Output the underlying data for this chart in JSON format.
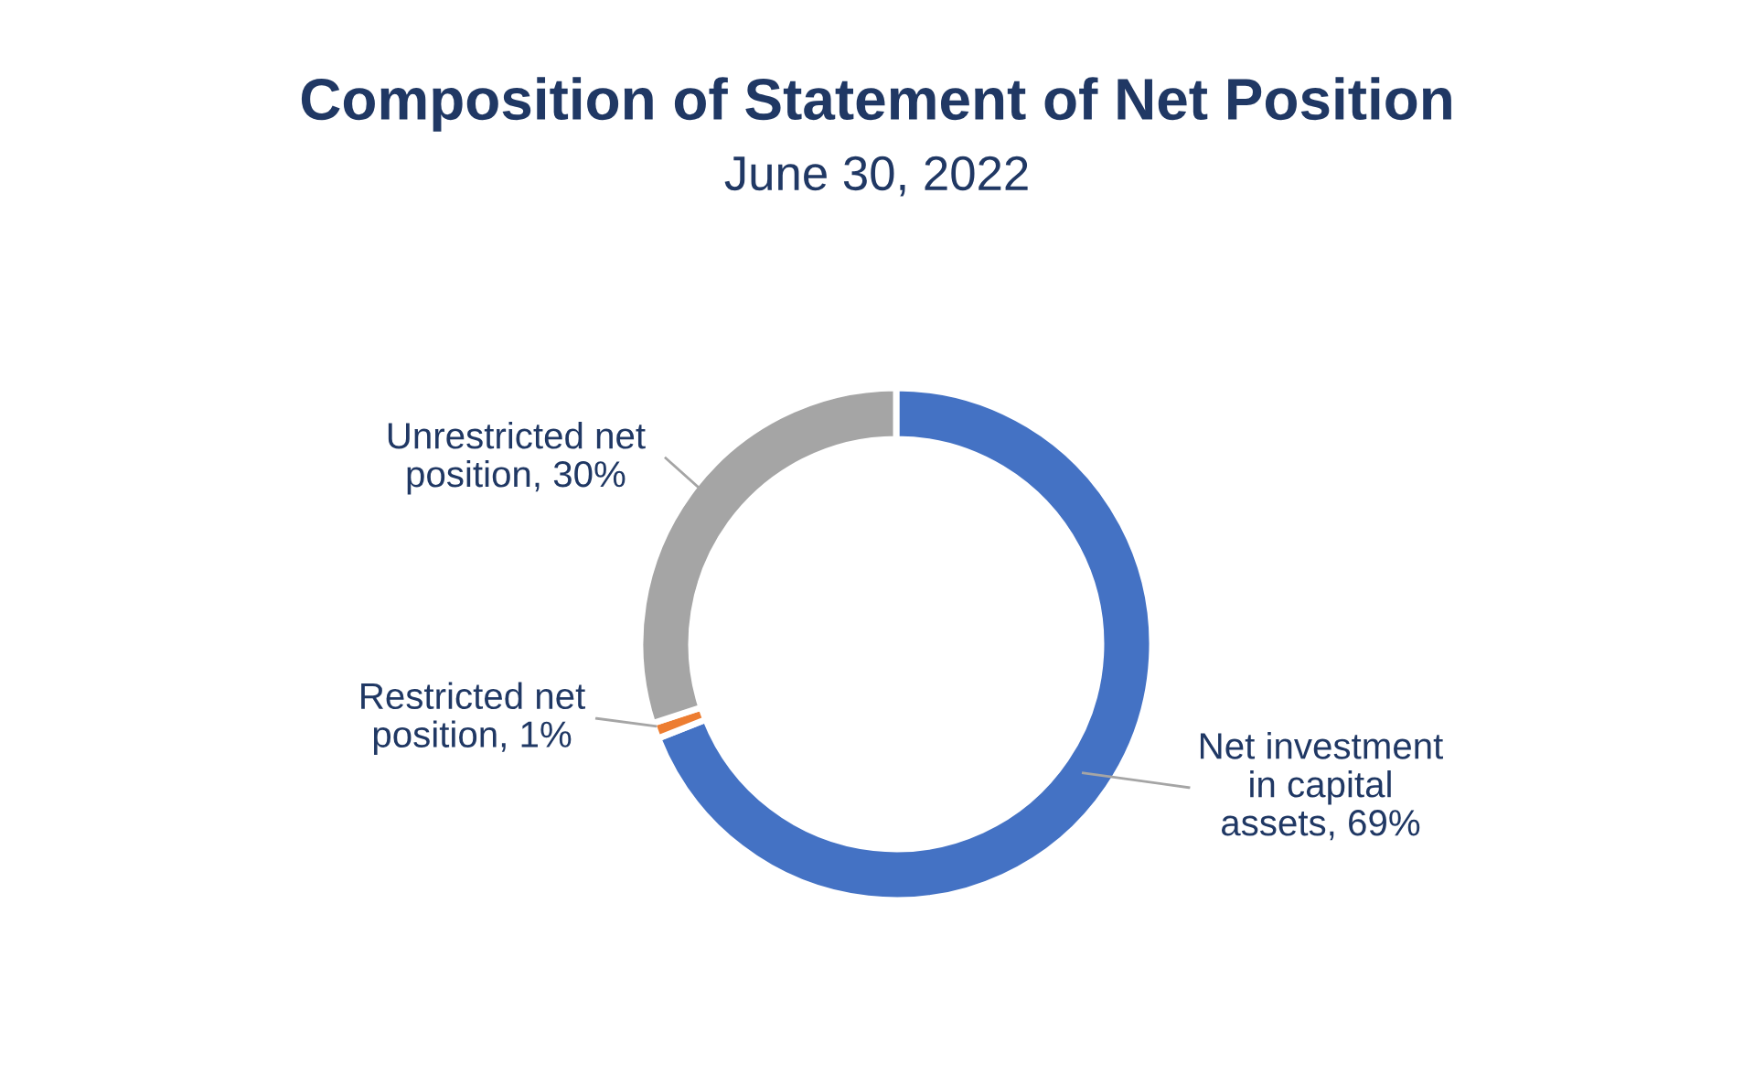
{
  "chart_data": {
    "type": "donut",
    "title": "Composition of Statement of Net Position",
    "subtitle": "June 30, 2022",
    "categories": [
      "Net investment\nin capital\nassets",
      "Restricted net\nposition",
      "Unrestricted net\nposition"
    ],
    "values": [
      69,
      1,
      30
    ],
    "colors": [
      "#4472c4",
      "#ed7d31",
      "#a5a5a5"
    ],
    "value_labels": [
      "69%",
      "1%",
      "30%"
    ],
    "legend": false
  }
}
